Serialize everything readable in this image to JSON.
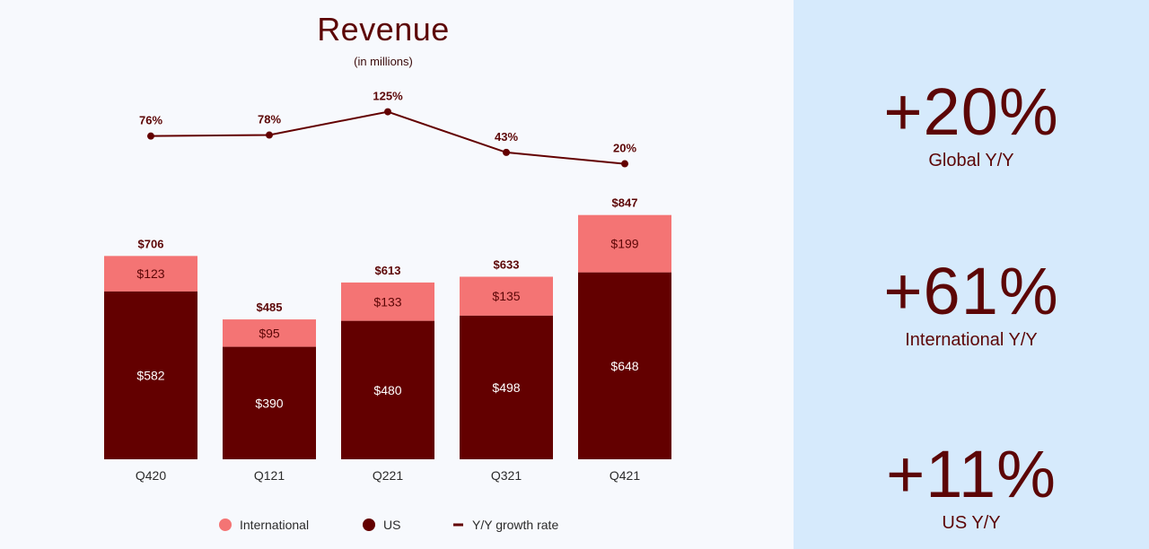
{
  "chart_data": {
    "type": "bar",
    "stacked": true,
    "title": "Revenue",
    "subtitle": "(in millions)",
    "categories": [
      "Q420",
      "Q121",
      "Q221",
      "Q321",
      "Q421"
    ],
    "series": [
      {
        "name": "US",
        "values": [
          582,
          390,
          480,
          498,
          648
        ],
        "labels": [
          "$582",
          "$390",
          "$480",
          "$498",
          "$648"
        ]
      },
      {
        "name": "International",
        "values": [
          123,
          95,
          133,
          135,
          199
        ],
        "labels": [
          "$123",
          "$95",
          "$133",
          "$135",
          "$199"
        ]
      }
    ],
    "totals": [
      706,
      485,
      613,
      633,
      847
    ],
    "total_labels": [
      "$706",
      "$485",
      "$613",
      "$633",
      "$847"
    ],
    "growth": {
      "name": "Y/Y growth rate",
      "type": "line",
      "values": [
        76,
        78,
        125,
        43,
        20
      ],
      "labels": [
        "76%",
        "78%",
        "125%",
        "43%",
        "20%"
      ]
    },
    "legend": {
      "position": "bottom",
      "items": [
        "International",
        "US",
        "Y/Y growth rate"
      ]
    },
    "ylim": [
      0,
      1000
    ],
    "grid": false
  },
  "colors": {
    "us": "#630000",
    "international": "#f47474",
    "line": "#630000",
    "text_dark": "#5c0606",
    "panel_bg": "#d6eafc"
  },
  "kpis": [
    {
      "value": "+20%",
      "label": "Global Y/Y"
    },
    {
      "value": "+61%",
      "label": "International Y/Y"
    },
    {
      "value": "+11%",
      "label": "US Y/Y"
    }
  ]
}
